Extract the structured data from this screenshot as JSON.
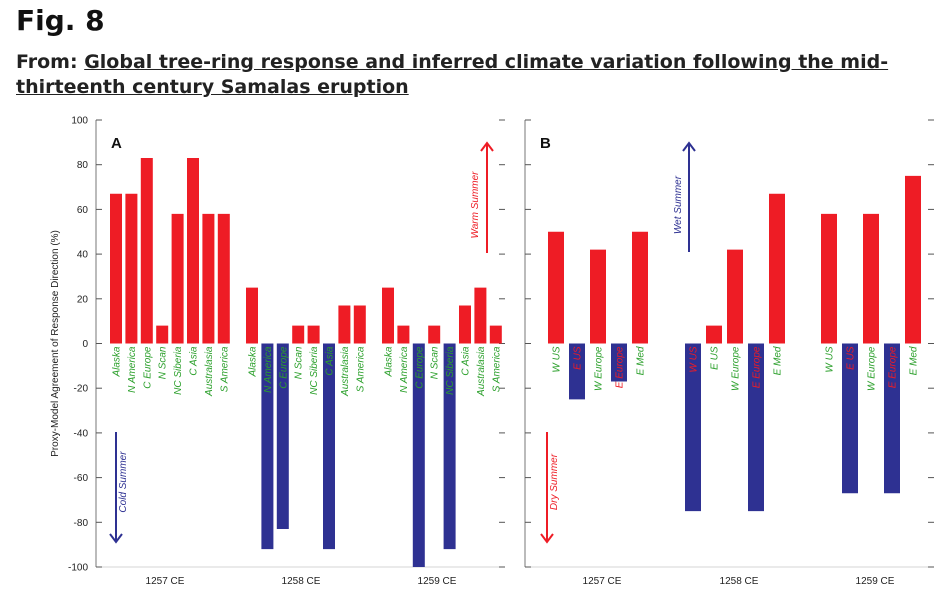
{
  "header": {
    "fig_label": "Fig. 8",
    "from_prefix": "From: ",
    "from_title": "Global tree-ring response and inferred climate variation following the mid-thirteenth century Samalas eruption"
  },
  "colors": {
    "positive": "#ee1c25",
    "negative": "#2e3192",
    "label_green": "#2ca02c",
    "label_red": "#ee1c25"
  },
  "chart_data": [
    {
      "panel": "A",
      "type": "bar",
      "ylabel": "Proxy-Model Agreement of Response Direction (%)",
      "ylim": [
        -100,
        100
      ],
      "yticks": [
        100,
        80,
        60,
        40,
        20,
        0,
        -20,
        -40,
        -60,
        -80,
        -100
      ],
      "annotations": {
        "up": "Warm Summer",
        "down": "Cold Summer"
      },
      "groups": [
        {
          "label": "1257 CE",
          "bars": [
            {
              "category": "Alaska",
              "value": 67
            },
            {
              "category": "N America",
              "value": 67
            },
            {
              "category": "C Europe",
              "value": 83
            },
            {
              "category": "N Scan",
              "value": 8
            },
            {
              "category": "NC Siberia",
              "value": 58
            },
            {
              "category": "C Asia",
              "value": 83
            },
            {
              "category": "Australasia",
              "value": 58
            },
            {
              "category": "S America",
              "value": 58
            }
          ]
        },
        {
          "label": "1258 CE",
          "bars": [
            {
              "category": "Alaska",
              "value": 25
            },
            {
              "category": "N America",
              "value": -92
            },
            {
              "category": "C Europe",
              "value": -83
            },
            {
              "category": "N Scan",
              "value": 8
            },
            {
              "category": "NC Siberia",
              "value": 8
            },
            {
              "category": "C Asia",
              "value": -92
            },
            {
              "category": "Australasia",
              "value": 17
            },
            {
              "category": "S America",
              "value": 17
            }
          ]
        },
        {
          "label": "1259 CE",
          "bars": [
            {
              "category": "Alaska",
              "value": 25
            },
            {
              "category": "N America",
              "value": 8
            },
            {
              "category": "C Europe",
              "value": -100
            },
            {
              "category": "N Scan",
              "value": 8
            },
            {
              "category": "NC Siberia",
              "value": -92
            },
            {
              "category": "C Asia",
              "value": 17
            },
            {
              "category": "Australasia",
              "value": 25
            },
            {
              "category": "S America",
              "value": 8
            }
          ]
        }
      ]
    },
    {
      "panel": "B",
      "type": "bar",
      "ylim": [
        -100,
        100
      ],
      "annotations": {
        "up": "Wet Summer",
        "down": "Dry Summer"
      },
      "groups": [
        {
          "label": "1257 CE",
          "bars": [
            {
              "category": "W US",
              "value": 50
            },
            {
              "category": "E US",
              "value": -25
            },
            {
              "category": "W Europe",
              "value": 42
            },
            {
              "category": "E Europe",
              "value": -17
            },
            {
              "category": "E Med",
              "value": 50
            }
          ]
        },
        {
          "label": "1258 CE",
          "bars": [
            {
              "category": "W US",
              "value": -75
            },
            {
              "category": "E US",
              "value": 8
            },
            {
              "category": "W Europe",
              "value": 42
            },
            {
              "category": "E Europe",
              "value": -75
            },
            {
              "category": "E Med",
              "value": 67
            }
          ]
        },
        {
          "label": "1259 CE",
          "bars": [
            {
              "category": "W US",
              "value": 58
            },
            {
              "category": "E US",
              "value": -67
            },
            {
              "category": "W Europe",
              "value": 58
            },
            {
              "category": "E Europe",
              "value": -67
            },
            {
              "category": "E Med",
              "value": 75
            }
          ]
        }
      ]
    }
  ]
}
